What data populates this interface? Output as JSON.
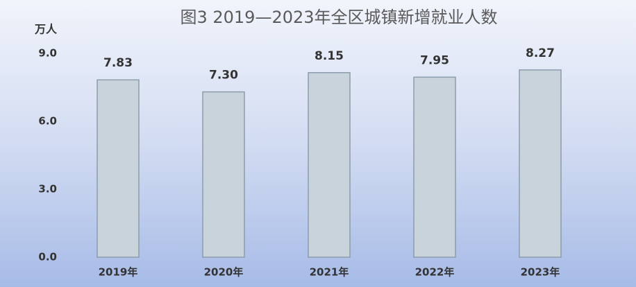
{
  "chart_data": {
    "type": "bar",
    "title": "图3  2019—2023年全区城镇新增就业人数",
    "y_unit": "万人",
    "categories": [
      "2019年",
      "2020年",
      "2021年",
      "2022年",
      "2023年"
    ],
    "values": [
      7.83,
      7.3,
      8.15,
      7.95,
      8.27
    ],
    "value_labels": [
      "7.83",
      "7.30",
      "8.15",
      "7.95",
      "8.27"
    ],
    "color": "#c8d3dc",
    "ylim": [
      0,
      9
    ],
    "yticks": [
      {
        "value": 0,
        "label": "0.0"
      },
      {
        "value": 3,
        "label": "3.0"
      },
      {
        "value": 6,
        "label": "6.0"
      },
      {
        "value": 9,
        "label": "9.0"
      }
    ],
    "grid": false
  }
}
